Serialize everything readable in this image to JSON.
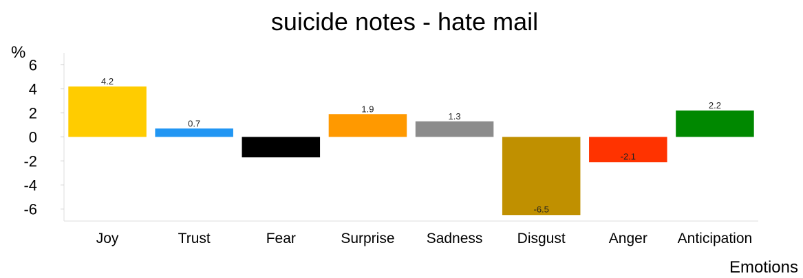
{
  "chart_data": {
    "type": "bar",
    "title": "suicide notes - hate mail",
    "xlabel": "Emotions",
    "ylabel": "%",
    "categories": [
      "Joy",
      "Trust",
      "Fear",
      "Surprise",
      "Sadness",
      "Disgust",
      "Anger",
      "Anticipation"
    ],
    "values": [
      4.2,
      0.7,
      -1.7,
      1.9,
      1.3,
      -6.5,
      -2.1,
      2.2
    ],
    "data_labels": [
      "4.2",
      "0.7",
      "",
      "1.9",
      "1.3",
      "-6.5",
      "-2.1",
      "2.2"
    ],
    "colors": [
      "#FFCC00",
      "#2196F3",
      "#000000",
      "#FF9900",
      "#8C8C8C",
      "#C09000",
      "#FF3300",
      "#008800"
    ],
    "ylim": [
      -7,
      7
    ],
    "yticks": [
      6,
      4,
      2,
      0,
      -2,
      -4,
      -6
    ],
    "ytick_labels": [
      "6",
      "4",
      "2",
      "0",
      "-2",
      "-4",
      "-6"
    ],
    "grid": false,
    "legend": "none"
  }
}
